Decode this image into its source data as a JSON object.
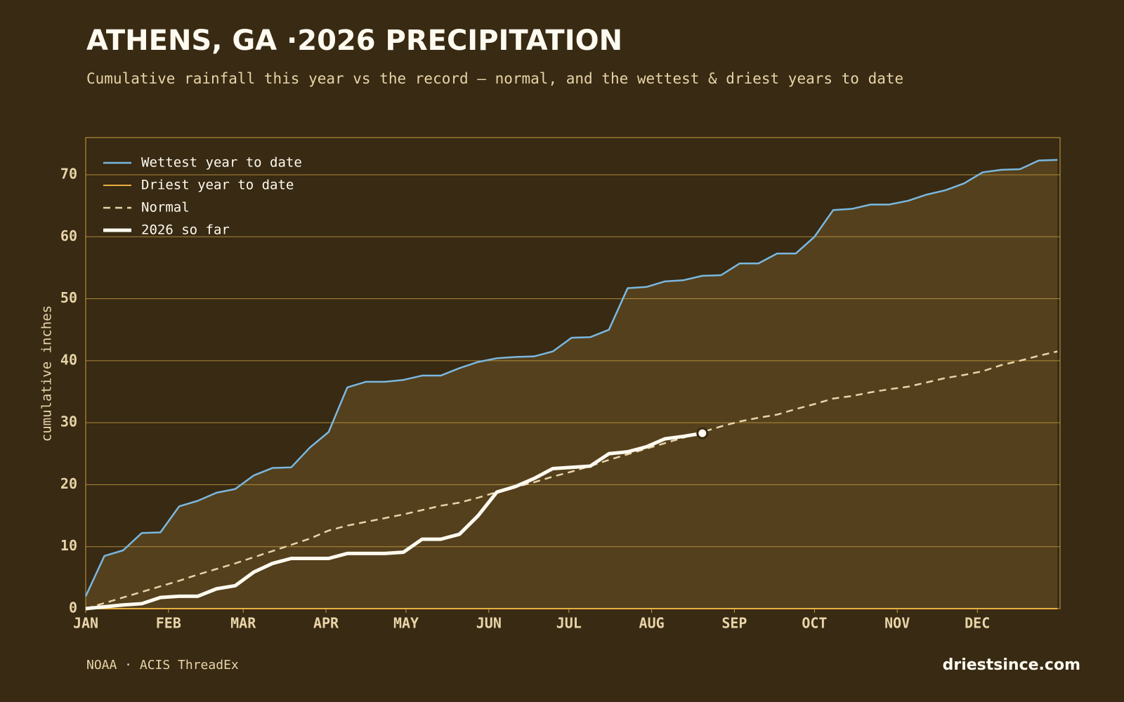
{
  "chart_data": {
    "type": "line",
    "title": "ATHENS, GA ·2026 PRECIPITATION",
    "subtitle": "Cumulative rainfall this year vs the record — normal, and the wettest & driest years to date",
    "y_label": "cumulative inches",
    "source": "NOAA · ACIS ThreadEx",
    "brand": "driestsince.com",
    "xlim": [
      0,
      365
    ],
    "ylim": [
      0,
      76
    ],
    "xticks": [
      {
        "value": 0,
        "label": "JAN"
      },
      {
        "value": 31,
        "label": "FEB"
      },
      {
        "value": 59,
        "label": "MAR"
      },
      {
        "value": 90,
        "label": "APR"
      },
      {
        "value": 120,
        "label": "MAY"
      },
      {
        "value": 151,
        "label": "JUN"
      },
      {
        "value": 181,
        "label": "JUL"
      },
      {
        "value": 212,
        "label": "AUG"
      },
      {
        "value": 243,
        "label": "SEP"
      },
      {
        "value": 273,
        "label": "OCT"
      },
      {
        "value": 304,
        "label": "NOV"
      },
      {
        "value": 334,
        "label": "DEC"
      }
    ],
    "yticks": [
      0,
      10,
      20,
      30,
      40,
      50,
      60,
      70
    ],
    "grid": true,
    "legend": "top-left",
    "fill_color": "#54401d",
    "x": [
      0,
      7,
      14,
      21,
      28,
      35,
      42,
      49,
      56,
      63,
      70,
      77,
      84,
      91,
      98,
      105,
      112,
      119,
      126,
      133,
      140,
      147,
      154,
      161,
      168,
      175,
      182,
      189,
      196,
      203,
      210,
      217,
      224,
      231,
      238,
      245,
      252,
      259,
      266,
      273,
      280,
      287,
      294,
      301,
      308,
      315,
      322,
      329,
      336,
      343,
      350,
      357,
      364
    ],
    "series": [
      {
        "name": "Wettest year to date",
        "color": "#7ab8e0",
        "width": 2.5,
        "style": "solid",
        "values": [
          2,
          8.5,
          9.4,
          12.2,
          12.3,
          16.5,
          17.4,
          18.7,
          19.3,
          21.5,
          22.7,
          22.8,
          26.0,
          28.5,
          35.7,
          36.6,
          36.6,
          36.9,
          37.6,
          37.6,
          38.8,
          39.8,
          40.4,
          40.6,
          40.7,
          41.5,
          43.7,
          43.8,
          45.0,
          51.7,
          51.9,
          52.8,
          53.0,
          53.7,
          53.8,
          55.7,
          55.7,
          57.3,
          57.3,
          60.0,
          64.3,
          64.5,
          65.2,
          65.2,
          65.8,
          66.8,
          67.5,
          68.6,
          70.4,
          70.8,
          70.9,
          72.3,
          72.4
        ]
      },
      {
        "name": "Driest year to date",
        "color": "#e8b040",
        "width": 2,
        "style": "solid",
        "values": [
          0,
          0,
          0,
          0,
          0,
          0,
          0,
          0,
          0,
          0,
          0,
          0,
          0,
          0,
          0,
          0,
          0,
          0,
          0,
          0,
          0,
          0,
          0,
          0,
          0,
          0,
          0,
          0,
          0,
          0,
          0,
          0,
          0,
          0,
          0,
          0,
          0,
          0,
          0,
          0,
          0,
          0,
          0,
          0,
          0,
          0,
          0,
          0,
          0,
          0,
          0,
          0,
          0
        ]
      },
      {
        "name": "Normal",
        "color": "#e8d4a8",
        "width": 2.5,
        "style": "dashed",
        "values": [
          0,
          0.9,
          1.8,
          2.7,
          3.6,
          4.5,
          5.5,
          6.4,
          7.3,
          8.3,
          9.3,
          10.3,
          11.3,
          12.6,
          13.4,
          14.0,
          14.6,
          15.2,
          15.9,
          16.6,
          17.1,
          17.9,
          18.8,
          19.6,
          20.4,
          21.3,
          22.1,
          23.0,
          24.0,
          24.9,
          25.8,
          26.7,
          27.6,
          28.5,
          29.4,
          30.2,
          30.8,
          31.3,
          32.2,
          33.0,
          33.9,
          34.3,
          34.9,
          35.4,
          35.8,
          36.5,
          37.2,
          37.7,
          38.3,
          39.3,
          40.0,
          40.8,
          41.5
        ]
      },
      {
        "name": "2026 so far",
        "color": "#fffaf0",
        "width": 5,
        "style": "solid",
        "end_marker": true,
        "values": [
          0,
          0.3,
          0.6,
          0.8,
          1.8,
          2.0,
          2.0,
          3.2,
          3.7,
          5.9,
          7.3,
          8.1,
          8.1,
          8.1,
          8.9,
          8.9,
          8.9,
          9.1,
          11.2,
          11.2,
          12.0,
          15.0,
          18.8,
          19.7,
          21.0,
          22.6,
          22.8,
          23.0,
          25.0,
          25.3,
          26.1,
          27.4,
          27.8,
          28.3,
          null,
          null,
          null,
          null,
          null,
          null,
          null,
          null,
          null,
          null,
          null,
          null,
          null,
          null,
          null,
          null,
          null,
          null,
          null
        ]
      }
    ]
  }
}
